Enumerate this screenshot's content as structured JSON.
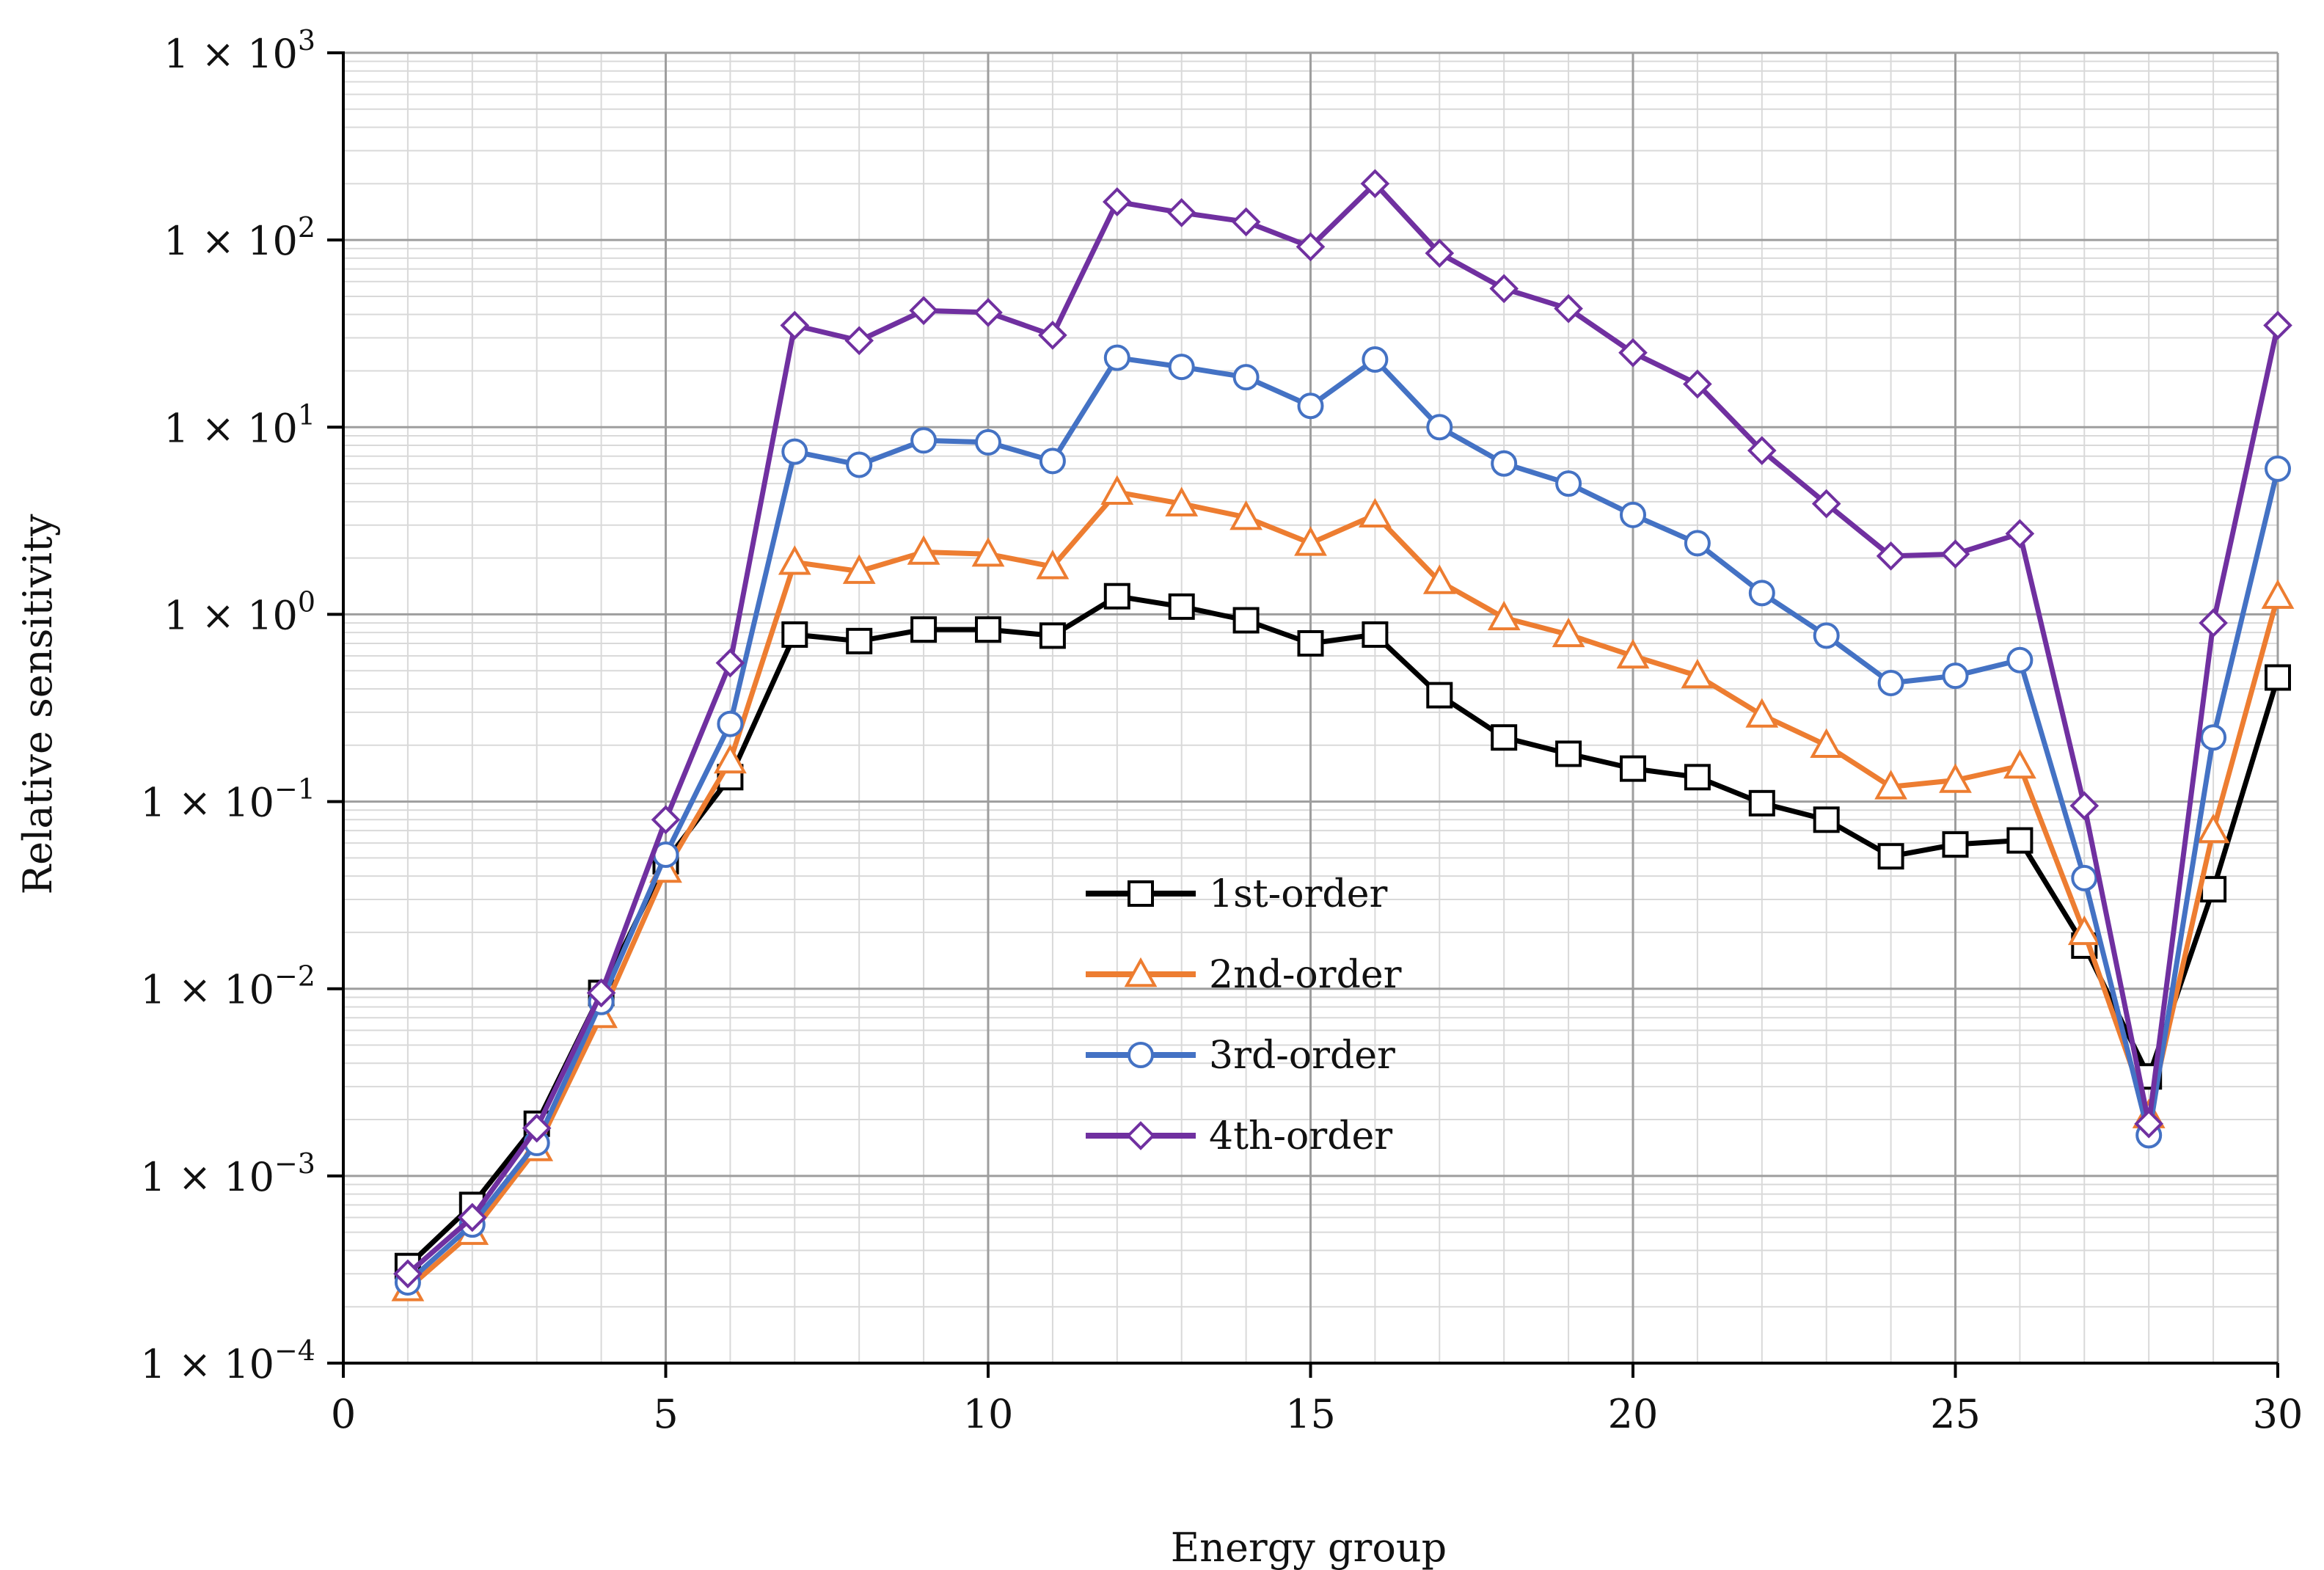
{
  "chart_data": {
    "type": "line",
    "title": "",
    "xlabel": "Energy group",
    "ylabel": "Relative sensitivity",
    "xlim": [
      0,
      30
    ],
    "ylim": [
      0.0001,
      1000
    ],
    "yscale": "log",
    "grid": true,
    "legend_position": "center",
    "x_ticks": [
      "0",
      "5",
      "10",
      "15",
      "20",
      "25",
      "30"
    ],
    "y_ticks": [
      {
        "base": "1 × 10",
        "exp": "3"
      },
      {
        "base": "1 × 10",
        "exp": "2"
      },
      {
        "base": "1 × 10",
        "exp": "1"
      },
      {
        "base": "1 × 10",
        "exp": "0"
      },
      {
        "base": "1 × 10",
        "exp": "−1"
      },
      {
        "base": "1 × 10",
        "exp": "−2"
      },
      {
        "base": "1 × 10",
        "exp": "−3"
      },
      {
        "base": "1 × 10",
        "exp": "−4"
      }
    ],
    "x": [
      1,
      2,
      3,
      4,
      5,
      6,
      7,
      8,
      9,
      10,
      11,
      12,
      13,
      14,
      15,
      16,
      17,
      18,
      19,
      20,
      21,
      22,
      23,
      24,
      25,
      26,
      27,
      28,
      29,
      30
    ],
    "series": [
      {
        "name": "1st-order",
        "color": "#000000",
        "marker": "square",
        "values": [
          0.00033,
          0.0007,
          0.0019,
          0.0095,
          0.048,
          0.135,
          0.78,
          0.72,
          0.83,
          0.83,
          0.77,
          1.25,
          1.1,
          0.93,
          0.7,
          0.78,
          0.37,
          0.22,
          0.18,
          0.15,
          0.135,
          0.098,
          0.08,
          0.051,
          0.059,
          0.062,
          0.017,
          0.0034,
          0.034,
          0.46
        ]
      },
      {
        "name": "2nd-order",
        "color": "#ED7D31",
        "marker": "triangle",
        "values": [
          0.00025,
          0.0005,
          0.0014,
          0.0072,
          0.043,
          0.165,
          1.9,
          1.7,
          2.15,
          2.1,
          1.8,
          4.5,
          3.9,
          3.3,
          2.4,
          3.4,
          1.5,
          0.96,
          0.78,
          0.6,
          0.47,
          0.29,
          0.2,
          0.12,
          0.13,
          0.155,
          0.02,
          0.0021,
          0.07,
          1.25
        ]
      },
      {
        "name": "3rd-order",
        "color": "#4472C4",
        "marker": "circle",
        "values": [
          0.00027,
          0.00055,
          0.0015,
          0.0085,
          0.052,
          0.26,
          7.4,
          6.3,
          8.5,
          8.3,
          6.6,
          23.5,
          21.0,
          18.5,
          13.0,
          23.0,
          10.0,
          6.4,
          5.0,
          3.4,
          2.4,
          1.3,
          0.77,
          0.43,
          0.47,
          0.57,
          0.039,
          0.00165,
          0.22,
          6.0
        ]
      },
      {
        "name": "4th-order",
        "color": "#7030A0",
        "marker": "diamond",
        "values": [
          0.0003,
          0.0006,
          0.0018,
          0.0095,
          0.08,
          0.55,
          35.0,
          29.0,
          42.0,
          41.0,
          31.0,
          160.0,
          140.0,
          125.0,
          92.0,
          200.0,
          85.0,
          55.0,
          43.0,
          25.0,
          17.0,
          7.5,
          3.9,
          2.05,
          2.1,
          2.7,
          0.095,
          0.0019,
          0.9,
          35.0
        ]
      }
    ]
  }
}
